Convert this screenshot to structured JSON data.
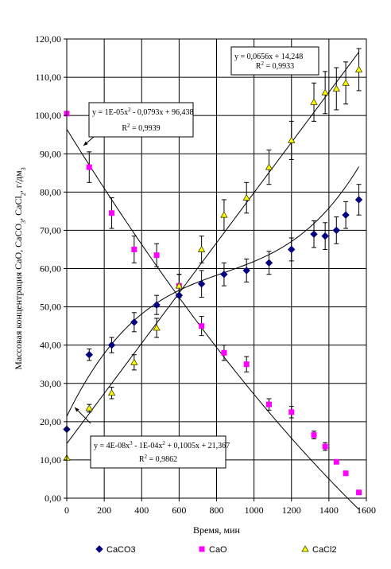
{
  "chart_data": {
    "type": "scatter",
    "title": "",
    "xlabel": "Время, мин",
    "ylabel_parts": [
      "Массовая концентрация CaO, CaCO",
      "3",
      ", CaCl",
      "2",
      ", г/дм",
      "3"
    ],
    "xlim": [
      0,
      1600
    ],
    "ylim": [
      0,
      120
    ],
    "xticks": [
      0,
      200,
      400,
      600,
      800,
      1000,
      1200,
      1400,
      1600
    ],
    "yticks": [
      0,
      10,
      20,
      30,
      40,
      50,
      60,
      70,
      80,
      90,
      100,
      110,
      120
    ],
    "ytick_labels": [
      "0,00",
      "10,00",
      "20,00",
      "30,00",
      "40,00",
      "50,00",
      "60,00",
      "70,00",
      "80,00",
      "90,00",
      "100,00",
      "110,00",
      "120,00"
    ],
    "grid": true,
    "legend_position": "bottom",
    "series": [
      {
        "name": "CaCO3",
        "marker": "diamond",
        "color": "#000080",
        "x": [
          0,
          120,
          240,
          360,
          480,
          600,
          720,
          840,
          960,
          1080,
          1200,
          1320,
          1380,
          1440,
          1490,
          1560
        ],
        "y": [
          18,
          37.5,
          40,
          46,
          50.5,
          53,
          56,
          58.5,
          59.5,
          61.5,
          65,
          69,
          68.5,
          70,
          74,
          78
        ],
        "err": [
          0,
          1.5,
          2,
          2.5,
          2.5,
          3,
          3.5,
          3,
          3,
          3,
          3,
          3.5,
          3.5,
          3.5,
          3.5,
          4
        ]
      },
      {
        "name": "CaO",
        "marker": "square",
        "color": "#ff00ff",
        "x": [
          0,
          120,
          240,
          360,
          480,
          600,
          720,
          840,
          960,
          1080,
          1200,
          1320,
          1380,
          1440,
          1490,
          1560
        ],
        "y": [
          100.5,
          86.5,
          74.5,
          65,
          63.5,
          55.5,
          45,
          38,
          35,
          24.5,
          22.5,
          16.5,
          13.5,
          9.5,
          6.5,
          1.5
        ],
        "err": [
          0,
          4,
          4,
          3.5,
          3,
          3,
          2.5,
          2,
          2,
          1.5,
          1.5,
          1,
          1,
          0.5,
          0.5,
          0
        ]
      },
      {
        "name": "CaCl2",
        "legend_label": "CaCl2",
        "marker": "triangle",
        "color": "#ffff00",
        "x": [
          0,
          120,
          240,
          360,
          480,
          600,
          720,
          840,
          960,
          1080,
          1200,
          1320,
          1380,
          1440,
          1490,
          1560
        ],
        "y": [
          10.5,
          23.5,
          27.5,
          35.5,
          44.5,
          55.5,
          65,
          74,
          78.5,
          86.5,
          93.5,
          103.5,
          106,
          107,
          108.5,
          112
        ],
        "err": [
          0,
          1,
          1.5,
          2,
          2.5,
          3,
          3.5,
          4,
          4,
          4.5,
          5,
          5,
          5.5,
          5.5,
          5.5,
          5.5
        ]
      }
    ],
    "trendlines": [
      {
        "series": "CaO",
        "equation_parts": [
          [
            "y = 1E-05x",
            ""
          ],
          [
            "2",
            "sup"
          ],
          [
            " - 0,0793x + 96,438",
            ""
          ]
        ],
        "r2_parts": [
          [
            "R",
            ""
          ],
          [
            "2",
            "sup"
          ],
          [
            " = 0,9939",
            ""
          ]
        ],
        "coefficients": [
          1e-05,
          -0.0793,
          96.438
        ],
        "x_range": [
          0,
          1560
        ]
      },
      {
        "series": "CaCO3",
        "equation_parts": [
          [
            "y = 4E-08x",
            ""
          ],
          [
            "3",
            "sup"
          ],
          [
            " - 1E-04x",
            ""
          ],
          [
            "2",
            "sup"
          ],
          [
            " + 0,1005x + 21,367",
            ""
          ]
        ],
        "r2_parts": [
          [
            "R",
            ""
          ],
          [
            "2",
            "sup"
          ],
          [
            " = 0,9862",
            ""
          ]
        ],
        "coefficients": [
          4e-08,
          -0.0001,
          0.1005,
          21.367
        ],
        "x_range": [
          0,
          1560
        ]
      },
      {
        "series": "CaCl2",
        "equation_parts": [
          [
            "y = 0,0656x + 14,248",
            ""
          ]
        ],
        "r2_parts": [
          [
            "R",
            ""
          ],
          [
            "2",
            "sup"
          ],
          [
            " = 0,9933",
            ""
          ]
        ],
        "coefficients": [
          0.0656,
          14.248
        ],
        "x_range": [
          0,
          1560
        ]
      }
    ]
  }
}
